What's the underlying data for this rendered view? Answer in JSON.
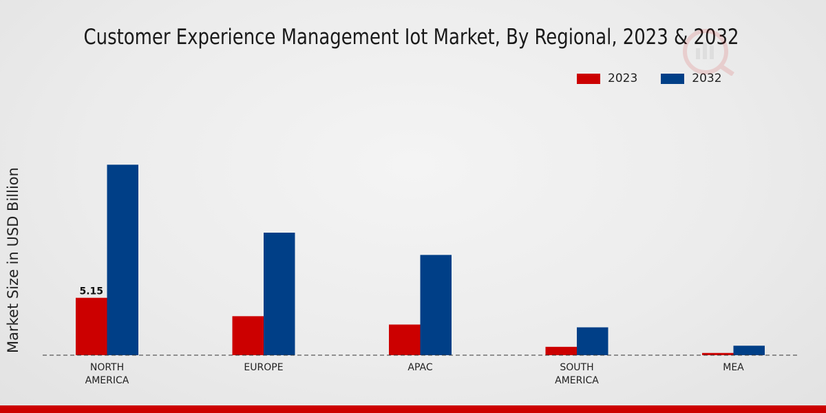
{
  "chart_data": {
    "type": "bar",
    "title": "Customer Experience Management Iot Market, By Regional, 2023 & 2032",
    "xlabel": "",
    "ylabel": "Market Size in USD Billion",
    "categories": [
      "NORTH\nAMERICA",
      "EUROPE",
      "APAC",
      "SOUTH\nAMERICA",
      "MEA"
    ],
    "series": [
      {
        "name": "2023",
        "color": "#cc0000",
        "values": [
          5.15,
          3.5,
          2.75,
          0.75,
          0.2
        ]
      },
      {
        "name": "2032",
        "color": "#003f87",
        "values": [
          17.1,
          11.0,
          9.0,
          2.5,
          0.85
        ]
      }
    ],
    "data_labels": [
      {
        "series": 0,
        "index": 0,
        "text": "5.15"
      }
    ],
    "ylim": [
      0,
      22
    ],
    "grid": false,
    "legend_position": "top-right"
  }
}
